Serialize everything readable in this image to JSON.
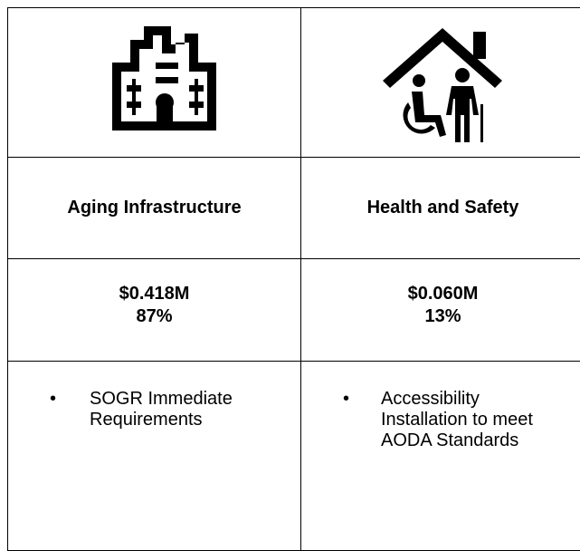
{
  "table": {
    "columns": [
      {
        "title": "Aging Infrastructure",
        "amount": "$0.418M",
        "share": "87%",
        "items": [
          "SOGR Immediate Requirements"
        ]
      },
      {
        "title": "Health and Safety",
        "amount": "$0.060M",
        "share": "13%",
        "items": [
          "Accessibility Installation to meet AODA Standards"
        ]
      }
    ]
  }
}
